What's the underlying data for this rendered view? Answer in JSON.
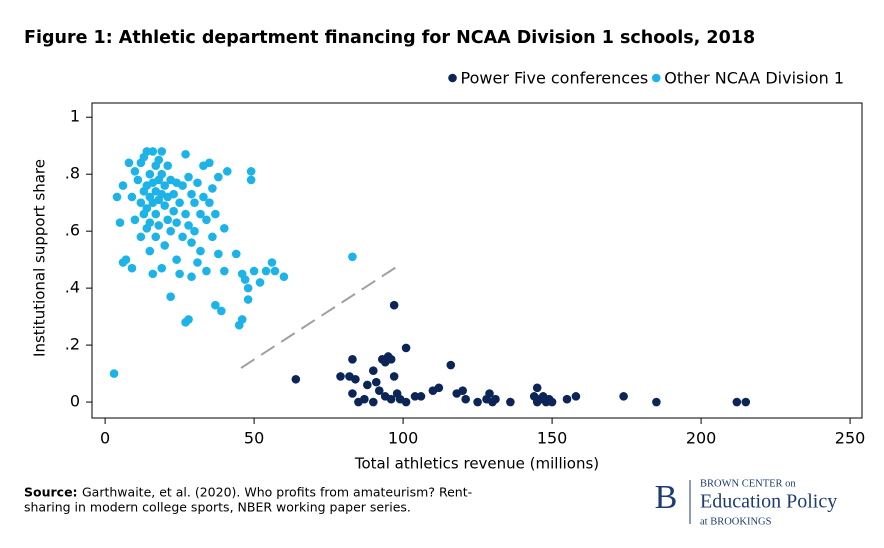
{
  "chart_data": {
    "type": "scatter",
    "title": "Figure 1: Athletic department financing for NCAA Division 1 schools, 2018",
    "x_label": "Total athletics revenue (millions)",
    "y_label": "Institutional support share",
    "xlim": [
      -4.4,
      254
    ],
    "ylim": [
      -0.056,
      1.05
    ],
    "xticks": [
      0,
      50,
      100,
      150,
      200,
      250
    ],
    "yticks": [
      0,
      {
        "value": 0.2,
        "label": ".2"
      },
      {
        "value": 0.4,
        "label": ".4"
      },
      {
        "value": 0.6,
        "label": ".6"
      },
      {
        "value": 0.8,
        "label": ".8"
      },
      1
    ],
    "legend": "top-right",
    "series": [
      {
        "name": "Power Five conferences",
        "color": "#0c2557",
        "x": [
          64,
          79,
          82,
          84,
          83,
          88,
          90,
          91,
          93,
          94,
          95,
          96,
          97,
          97,
          101,
          83,
          85,
          87,
          90,
          92,
          94,
          96,
          98,
          99,
          101,
          104,
          106,
          110,
          112,
          116,
          118,
          120,
          121,
          125,
          128,
          129,
          130,
          131,
          136,
          144,
          145,
          145,
          146,
          147,
          148,
          149,
          150,
          155,
          158,
          174,
          185,
          212,
          215
        ],
        "values": [
          0.08,
          0.09,
          0.09,
          0.08,
          0.15,
          0.06,
          0.11,
          0.07,
          0.15,
          0.14,
          0.16,
          0.15,
          0.09,
          0.34,
          0.19,
          0.03,
          0,
          0.01,
          0,
          0.04,
          0.02,
          0.01,
          0.03,
          0.01,
          0,
          0.02,
          0.02,
          0.04,
          0.05,
          0.13,
          0.03,
          0.04,
          0.01,
          0,
          0.01,
          0.03,
          0,
          0.01,
          0,
          0.02,
          0.05,
          0,
          0.01,
          0.02,
          0,
          0.01,
          0,
          0.01,
          0.02,
          0.02,
          0,
          0,
          0
        ]
      },
      {
        "name": "Other NCAA Division 1",
        "color": "#1bb3e8",
        "x": [
          3,
          4,
          5,
          6,
          6,
          7,
          8,
          9,
          9,
          10,
          10,
          11,
          12,
          12,
          12,
          13,
          13,
          13,
          14,
          14,
          14,
          14,
          15,
          15,
          15,
          15,
          16,
          16,
          16,
          16,
          17,
          17,
          17,
          17,
          18,
          18,
          18,
          18,
          19,
          19,
          19,
          19,
          20,
          20,
          20,
          21,
          21,
          21,
          22,
          22,
          22,
          23,
          23,
          24,
          24,
          24,
          25,
          25,
          26,
          26,
          27,
          27,
          27,
          28,
          28,
          28,
          29,
          29,
          29,
          30,
          30,
          31,
          31,
          32,
          32,
          33,
          33,
          34,
          34,
          35,
          35,
          36,
          36,
          37,
          37,
          38,
          38,
          39,
          40,
          40,
          41,
          44,
          45,
          46,
          46,
          47,
          48,
          48,
          49,
          49,
          50,
          52,
          54,
          56,
          57,
          60,
          83
        ],
        "values": [
          0.1,
          0.72,
          0.63,
          0.76,
          0.49,
          0.5,
          0.84,
          0.72,
          0.47,
          0.64,
          0.81,
          0.78,
          0.84,
          0.7,
          0.58,
          0.86,
          0.74,
          0.66,
          0.88,
          0.76,
          0.68,
          0.61,
          0.8,
          0.72,
          0.63,
          0.53,
          0.88,
          0.77,
          0.7,
          0.45,
          0.83,
          0.74,
          0.66,
          0.58,
          0.85,
          0.78,
          0.71,
          0.62,
          0.88,
          0.8,
          0.73,
          0.47,
          0.76,
          0.69,
          0.55,
          0.83,
          0.72,
          0.64,
          0.78,
          0.6,
          0.37,
          0.73,
          0.67,
          0.77,
          0.63,
          0.5,
          0.7,
          0.45,
          0.76,
          0.58,
          0.87,
          0.66,
          0.28,
          0.79,
          0.62,
          0.29,
          0.73,
          0.56,
          0.44,
          0.7,
          0.6,
          0.77,
          0.49,
          0.66,
          0.53,
          0.72,
          0.83,
          0.64,
          0.46,
          0.84,
          0.7,
          0.75,
          0.58,
          0.66,
          0.34,
          0.79,
          0.52,
          0.32,
          0.61,
          0.46,
          0.81,
          0.52,
          0.27,
          0.29,
          0.45,
          0.43,
          0.4,
          0.36,
          0.78,
          0.81,
          0.46,
          0.42,
          0.46,
          0.49,
          0.46,
          0.44,
          0.51
        ]
      }
    ]
  },
  "source": {
    "label": "Source:",
    "text": "Garthwaite, et al. (2020). Who profits from amateurism? Rent-",
    "text2": "sharing in modern college sports, NBER working paper series."
  },
  "logo": {
    "letter": "B",
    "line1": "BROWN CENTER on",
    "line2": "Education Policy",
    "line3": "at BROOKINGS"
  }
}
